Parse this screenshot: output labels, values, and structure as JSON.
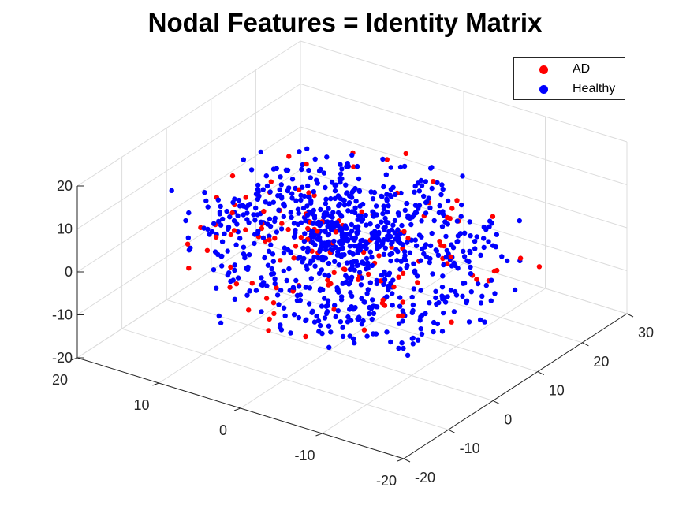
{
  "title": "Nodal Features = Identity Matrix",
  "colors": {
    "AD": "#ff0000",
    "Healthy": "#0000ff",
    "grid": "#dcdcdc",
    "axis": "#262626"
  },
  "chart_data": {
    "type": "scatter",
    "dimensions": 3,
    "title": "Nodal Features = Identity Matrix",
    "legend_position": "top-right",
    "grid": true,
    "xlim": [
      -20,
      20
    ],
    "ylim": [
      -20,
      30
    ],
    "zlim": [
      -20,
      20
    ],
    "xticks": [
      "-20",
      "-10",
      "0",
      "10",
      "20"
    ],
    "yticks": [
      "-20",
      "-10",
      "0",
      "10",
      "20",
      "30"
    ],
    "zticks": [
      "-20",
      "-10",
      "0",
      "10",
      "20"
    ],
    "series": [
      {
        "name": "AD",
        "color": "#ff0000",
        "approx_count": 130
      },
      {
        "name": "Healthy",
        "color": "#0000ff",
        "approx_count": 860
      }
    ]
  }
}
